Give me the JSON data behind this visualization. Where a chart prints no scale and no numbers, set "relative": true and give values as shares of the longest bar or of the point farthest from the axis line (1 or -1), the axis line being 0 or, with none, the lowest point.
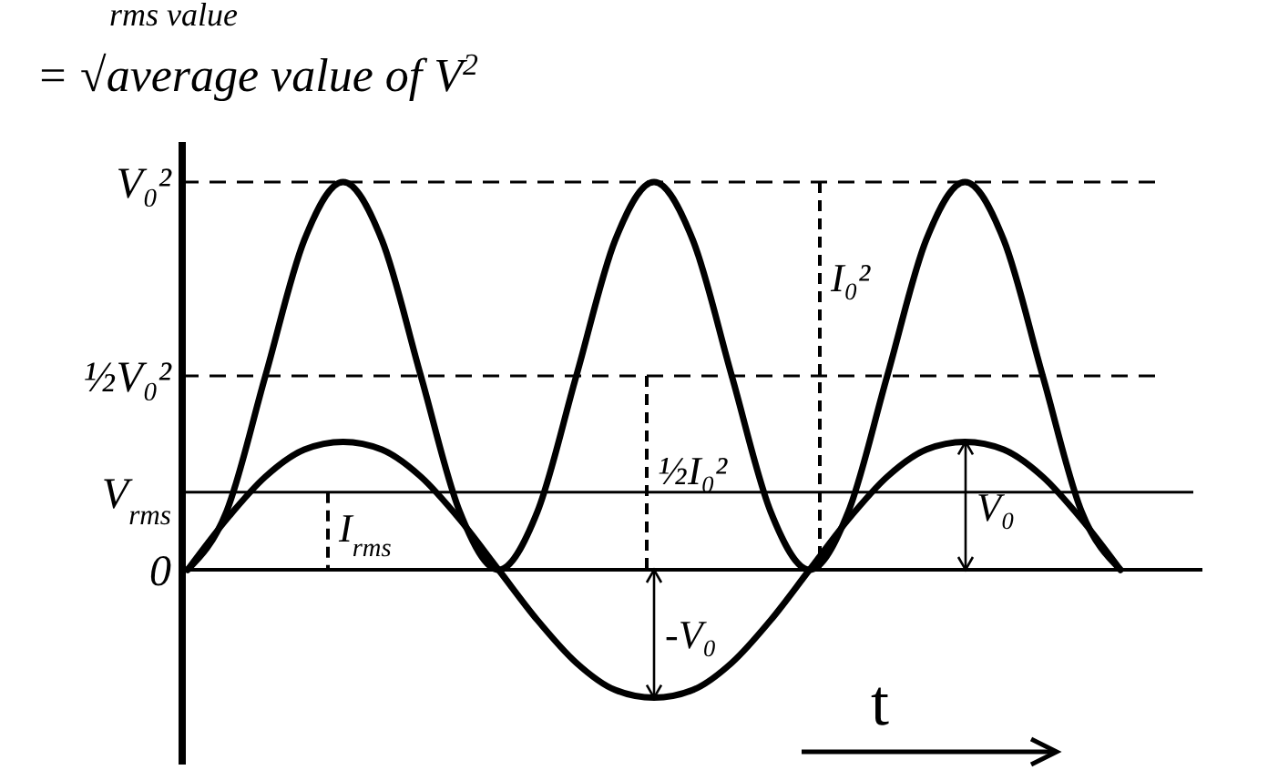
{
  "chart_data": {
    "type": "line",
    "title": "rms value",
    "subtitle": "= √average value of V$^{2}$",
    "xlabel": "t",
    "categories": [
      null,
      null,
      null,
      null,
      null,
      null,
      null,
      null,
      null,
      null,
      null,
      null,
      null,
      null,
      null,
      null,
      null,
      null,
      null,
      null,
      null,
      null,
      null,
      null,
      null
    ],
    "series": [
      {
        "color": "#000000",
        "values": [
          0,
          0.15,
          0.5,
          0.85,
          1,
          0.85,
          0.5,
          0.15,
          0,
          0.15,
          0.5,
          0.85,
          1,
          0.85,
          0.5,
          0.15,
          0,
          0.15,
          0.5,
          0.85,
          1,
          0.85,
          0.5,
          0.15,
          0
        ]
      },
      {
        "color": "#000000",
        "values": [
          0,
          0.13,
          0.24,
          0.31,
          0.33,
          0.31,
          0.24,
          0.13,
          0,
          -0.13,
          -0.24,
          -0.31,
          -0.33,
          -0.31,
          -0.24,
          -0.13,
          0,
          0.13,
          0.24,
          0.31,
          0.33,
          0.31,
          0.24,
          0.13,
          0
        ]
      }
    ],
    "relative": true,
    "ref_lines": [
      {
        "axis": "y",
        "value": 1,
        "label": "V₀²",
        "line_style": "dashed"
      },
      {
        "axis": "y",
        "value": 0.5,
        "label": "½V₀²",
        "line_style": "dashed"
      },
      {
        "axis": "y",
        "value": 0.2,
        "label": "V$_{rms}$",
        "line_style": "solid"
      }
    ],
    "annotations": [
      {
        "text": "I$_{rms}$",
        "y": 0.2
      },
      {
        "text": "½I₀²",
        "y": 0.5
      },
      {
        "text": "I₀²",
        "y": 1
      },
      {
        "text": "-V₀",
        "y": -0.33
      },
      {
        "text": "V₀",
        "y": 0.33
      },
      "0"
    ],
    "tick_labels": "y",
    "marker": "none",
    "line_style": "solid"
  }
}
